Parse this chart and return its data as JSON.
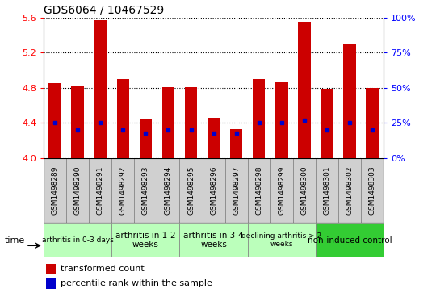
{
  "title": "GDS6064 / 10467529",
  "samples": [
    "GSM1498289",
    "GSM1498290",
    "GSM1498291",
    "GSM1498292",
    "GSM1498293",
    "GSM1498294",
    "GSM1498295",
    "GSM1498296",
    "GSM1498297",
    "GSM1498298",
    "GSM1498299",
    "GSM1498300",
    "GSM1498301",
    "GSM1498302",
    "GSM1498303"
  ],
  "transformed_count": [
    4.85,
    4.83,
    5.57,
    4.9,
    4.45,
    4.81,
    4.81,
    4.46,
    4.33,
    4.9,
    4.87,
    5.55,
    4.79,
    5.3,
    4.8
  ],
  "percentile_values": [
    25,
    20,
    25,
    20,
    18,
    20,
    20,
    18,
    18,
    25,
    25,
    27,
    20,
    25,
    20
  ],
  "ylim_left": [
    4.0,
    5.6
  ],
  "ylim_right": [
    0,
    100
  ],
  "yticks_left": [
    4.0,
    4.4,
    4.8,
    5.2,
    5.6
  ],
  "yticks_right": [
    0,
    25,
    50,
    75,
    100
  ],
  "group_defs": [
    {
      "start": 0,
      "end": 3,
      "color": "#bbffbb",
      "label": "arthritis in 0-3 days",
      "small": true
    },
    {
      "start": 3,
      "end": 6,
      "color": "#bbffbb",
      "label": "arthritis in 1-2\nweeks",
      "small": false
    },
    {
      "start": 6,
      "end": 9,
      "color": "#bbffbb",
      "label": "arthritis in 3-4\nweeks",
      "small": false
    },
    {
      "start": 9,
      "end": 12,
      "color": "#bbffbb",
      "label": "declining arthritis > 2\nweeks",
      "small": true
    },
    {
      "start": 12,
      "end": 15,
      "color": "#33cc33",
      "label": "non-induced control",
      "small": false
    }
  ],
  "bar_color": "#cc0000",
  "percentile_color": "#0000cc",
  "base_value": 4.0,
  "bar_width": 0.55,
  "plot_bg": "#ffffff",
  "sample_box_color": "#d0d0d0",
  "title_fontsize": 10,
  "ytick_fontsize": 8,
  "sample_fontsize": 6.5,
  "group_fontsize": 7.5,
  "legend_fontsize": 8
}
